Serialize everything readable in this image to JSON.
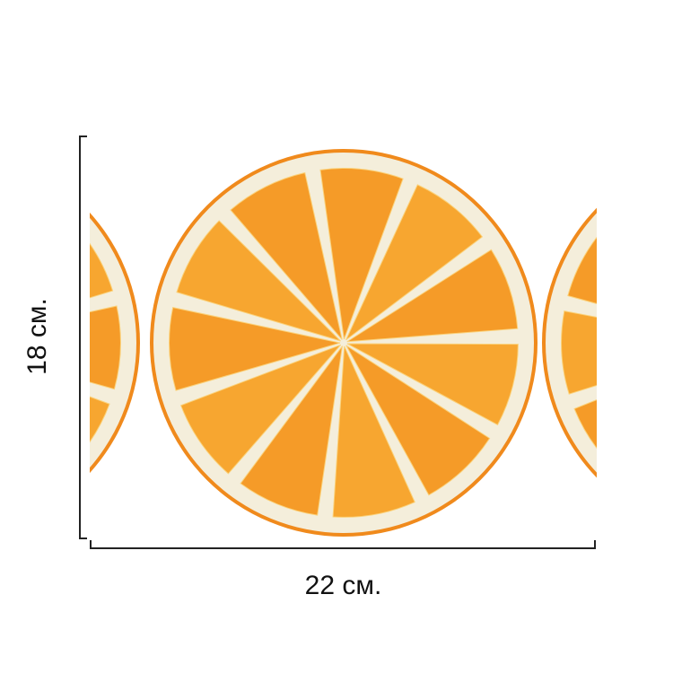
{
  "dimensions": {
    "height_label": "18 см.",
    "width_label": "22 см."
  },
  "product": {
    "subject": "orange-slice-print",
    "colors": {
      "rind": "#f08a1c",
      "pith": "#f4eedb",
      "segment": "#f7a630",
      "segment_dark": "#ef8a1a"
    },
    "segments": 11
  }
}
